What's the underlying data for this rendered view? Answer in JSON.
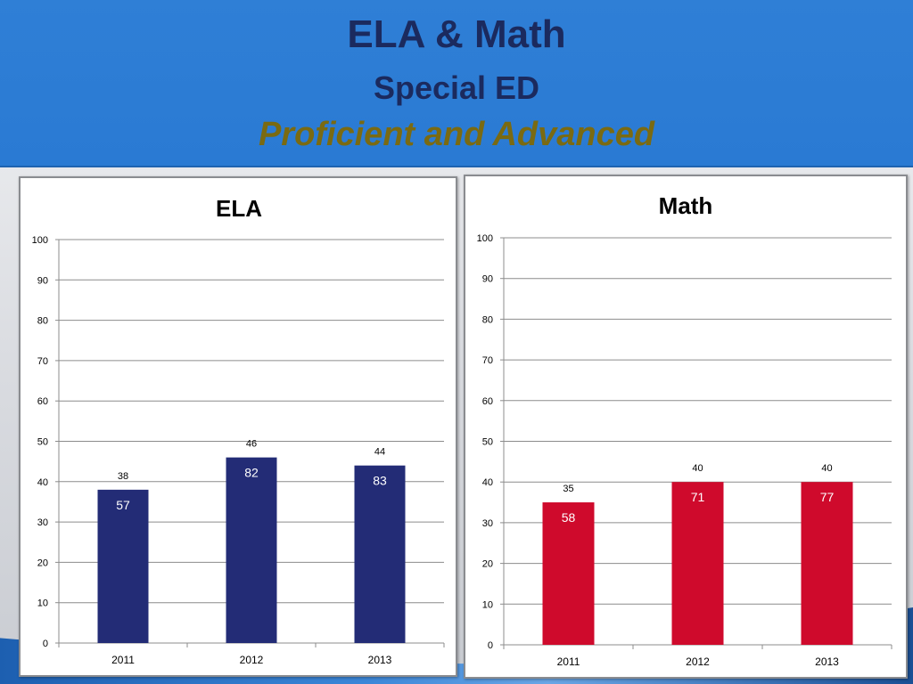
{
  "slide": {
    "title": "ELA & Math",
    "subtitle": "Special ED",
    "subtitle2": "Proficient and  Advanced"
  },
  "chart_data": [
    {
      "type": "bar",
      "title": "ELA",
      "categories": [
        "2011",
        "2012",
        "2013"
      ],
      "values": [
        38,
        46,
        44
      ],
      "value_labels": [
        "38",
        "46",
        "44"
      ],
      "inner_labels": [
        "57",
        "82",
        "83"
      ],
      "ylim": [
        0,
        100
      ],
      "yticks": [
        0,
        10,
        20,
        30,
        40,
        50,
        60,
        70,
        80,
        90,
        100
      ],
      "grid": true,
      "color": "#232c76"
    },
    {
      "type": "bar",
      "title": "Math",
      "categories": [
        "2011",
        "2012",
        "2013"
      ],
      "values": [
        35,
        40,
        40
      ],
      "value_labels": [
        "35",
        "40",
        "40"
      ],
      "inner_labels": [
        "58",
        "71",
        "77"
      ],
      "ylim": [
        0,
        100
      ],
      "yticks": [
        0,
        10,
        20,
        30,
        40,
        50,
        60,
        70,
        80,
        90,
        100
      ],
      "grid": true,
      "color": "#cf0a2c"
    }
  ]
}
